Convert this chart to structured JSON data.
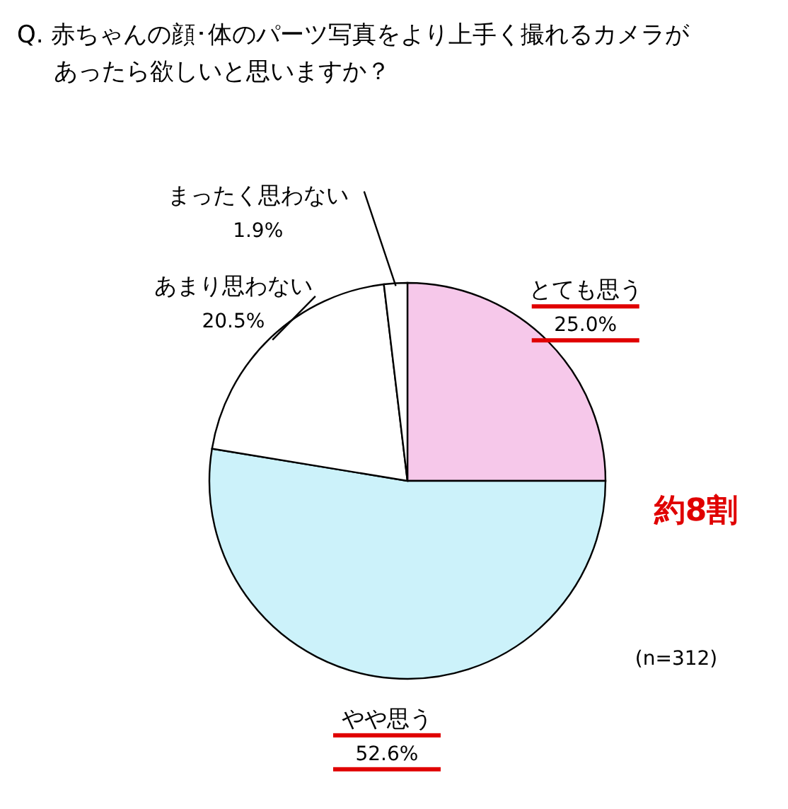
{
  "chart_data": {
    "type": "pie",
    "title": "Q. 赤ちゃんの顔･体のパーツ写真をより上手く撮れるカメラがあったら欲しいと思いますか？",
    "categories": [
      "とても思う",
      "やや思う",
      "あまり思わない",
      "まったく思わない"
    ],
    "values": [
      25.0,
      52.6,
      20.5,
      1.9
    ],
    "colors": [
      "#f6c8ea",
      "#ccf2fa",
      "#ffffff",
      "#ffffff"
    ],
    "value_labels": [
      "25.0%",
      "52.6%",
      "20.5%",
      "1.9%"
    ],
    "annotations": [
      "約8割",
      "(n=312)"
    ]
  }
}
